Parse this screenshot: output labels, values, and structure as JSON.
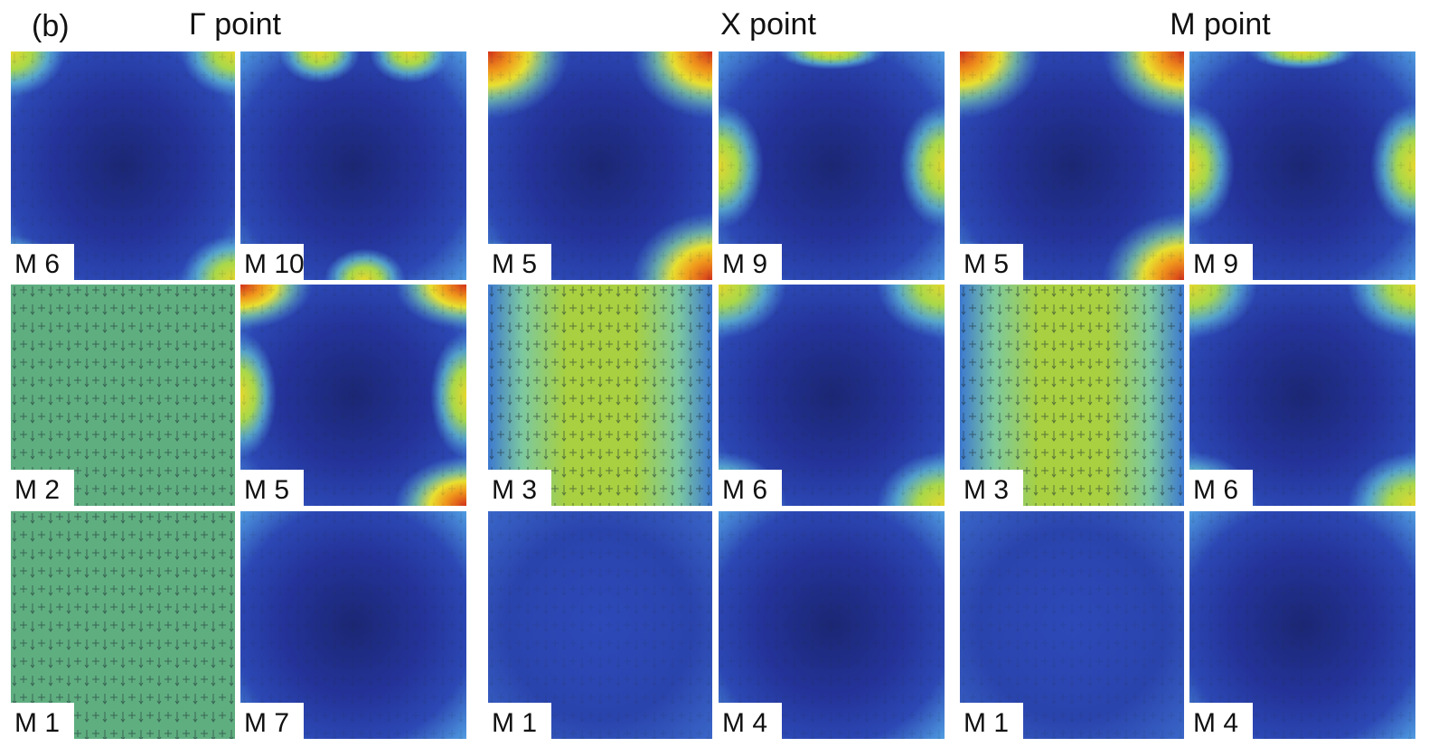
{
  "panel_label": "(b)",
  "groups": [
    {
      "title": "Γ point",
      "tiles": [
        {
          "label": "M 6"
        },
        {
          "label": "M 10"
        },
        {
          "label": "M 2"
        },
        {
          "label": "M 5"
        },
        {
          "label": "M 1"
        },
        {
          "label": "M 7"
        }
      ]
    },
    {
      "title": "X point",
      "tiles": [
        {
          "label": "M 5"
        },
        {
          "label": "M 9"
        },
        {
          "label": "M 3"
        },
        {
          "label": "M 6"
        },
        {
          "label": "M 1"
        },
        {
          "label": "M 4"
        }
      ]
    },
    {
      "title": "M point",
      "tiles": [
        {
          "label": "M 5"
        },
        {
          "label": "M 9"
        },
        {
          "label": "M 3"
        },
        {
          "label": "M 6"
        },
        {
          "label": "M 1"
        },
        {
          "label": "M 4"
        }
      ]
    }
  ]
}
